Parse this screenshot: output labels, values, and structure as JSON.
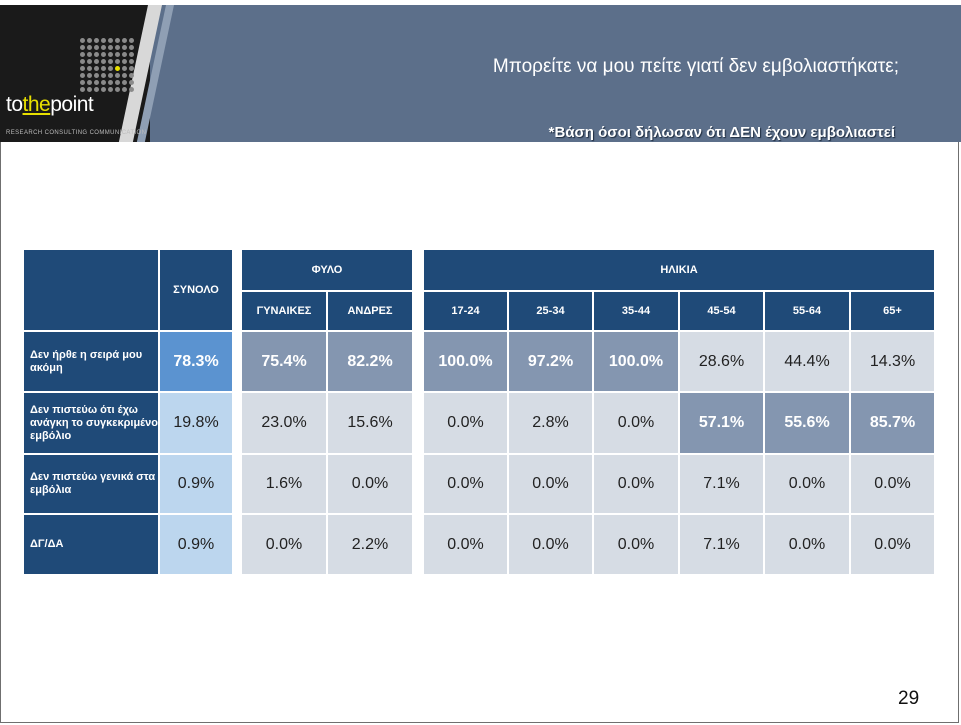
{
  "header": {
    "title": "Μπορείτε να μου πείτε γιατί δεν εμβολιαστήκατε;",
    "subtitle": "*Βάση όσοι δήλωσαν ότι ΔΕΝ έχουν εμβολιαστεί",
    "logo_text_a": "to",
    "logo_text_b": "the",
    "logo_text_c": "point",
    "logo_tagline": "RESEARCH  CONSULTING  COMMUNICATION"
  },
  "table": {
    "total_header": "ΣΥΝΟΛΟ",
    "gender_header": "ΦΥΛΟ",
    "age_header": "ΗΛΙΚΙΑ",
    "columns": [
      "ΓΥΝΑΙΚΕΣ",
      "ΑΝΔΡΕΣ",
      "17-24",
      "25-34",
      "35-44",
      "45-54",
      "55-64",
      "65+"
    ],
    "rows": [
      {
        "label": "Δεν ήρθε η σειρά μου ακόμη",
        "total": "78.3%",
        "values": [
          "75.4%",
          "82.2%",
          "100.0%",
          "97.2%",
          "100.0%",
          "28.6%",
          "44.4%",
          "14.3%"
        ]
      },
      {
        "label": "Δεν πιστεύω ότι έχω ανάγκη το συγκεκριμένο εμβόλιο",
        "total": "19.8%",
        "values": [
          "23.0%",
          "15.6%",
          "0.0%",
          "2.8%",
          "0.0%",
          "57.1%",
          "55.6%",
          "85.7%"
        ]
      },
      {
        "label": "Δεν πιστεύω γενικά στα εμβόλια",
        "total": "0.9%",
        "values": [
          "1.6%",
          "0.0%",
          "0.0%",
          "0.0%",
          "0.0%",
          "7.1%",
          "0.0%",
          "0.0%"
        ]
      },
      {
        "label": "ΔΓ/ΔΑ",
        "total": "0.9%",
        "values": [
          "0.0%",
          "2.2%",
          "0.0%",
          "0.0%",
          "0.0%",
          "7.1%",
          "0.0%",
          "0.0%"
        ]
      }
    ]
  },
  "page_number": "29",
  "colors": {
    "header_blue": "#1f4a78",
    "highlight": "#8496b0",
    "total_highlight": "#5b93d0"
  }
}
